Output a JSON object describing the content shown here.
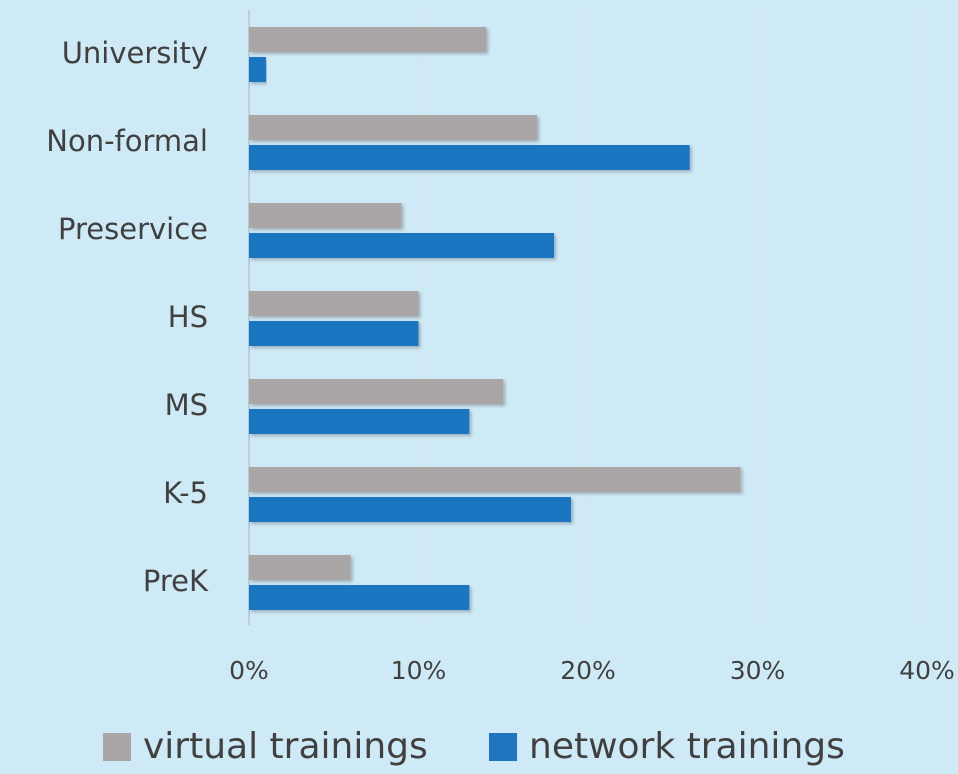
{
  "chart_data": {
    "type": "hbar",
    "categories": [
      "University",
      "Non-formal",
      "Preservice",
      "HS",
      "MS",
      "K-5",
      "PreK"
    ],
    "series": [
      {
        "name": "virtual trainings",
        "color": "#aba6a6",
        "values": [
          14,
          17,
          9,
          10,
          15,
          29,
          6
        ]
      },
      {
        "name": "network trainings",
        "color": "#1f75c0",
        "values": [
          1,
          26,
          18,
          10,
          13,
          19,
          13
        ]
      }
    ],
    "xlim": [
      0,
      40
    ],
    "xticks": [
      {
        "value": 0,
        "label": "0%"
      },
      {
        "value": 10,
        "label": "10%"
      },
      {
        "value": 20,
        "label": "20%"
      },
      {
        "value": 30,
        "label": "30%"
      },
      {
        "value": 40,
        "label": "40%"
      }
    ],
    "grid": true,
    "legend": "bottom"
  }
}
